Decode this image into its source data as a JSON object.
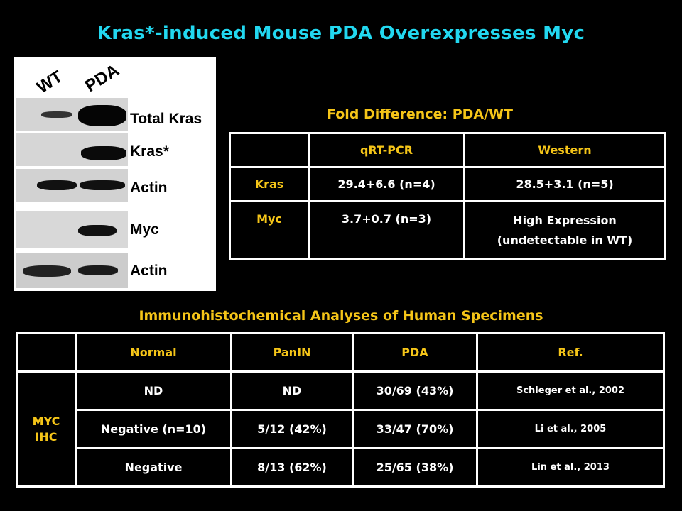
{
  "title": "Kras*-induced Mouse PDA Overexpresses Myc",
  "blot": {
    "lanes": [
      "WT",
      "PDA"
    ],
    "labels": [
      "Total Kras",
      "Kras*",
      "Actin",
      "Myc",
      "Actin"
    ]
  },
  "fold": {
    "subtitle": "Fold Difference: PDA/WT",
    "headers": [
      "",
      "qRT-PCR",
      "Western"
    ],
    "rows": [
      {
        "label": "Kras",
        "qrt": "29.4+6.6 (n=4)",
        "western": "28.5+3.1 (n=5)"
      },
      {
        "label": "Myc",
        "qrt": "3.7+0.7 (n=3)",
        "western_line1": "High Expression",
        "western_line2": "(undetectable in WT)"
      }
    ]
  },
  "ihc": {
    "subtitle": "Immunohistochemical Analyses of Human Specimens",
    "headers": [
      "",
      "Normal",
      "PanIN",
      "PDA",
      "Ref."
    ],
    "group_label_line1": "MYC",
    "group_label_line2": "IHC",
    "rows": [
      {
        "normal": "ND",
        "panin": "ND",
        "pda": "30/69 (43%)",
        "ref": "Schleger et al., 2002"
      },
      {
        "normal": "Negative (n=10)",
        "panin": "5/12 (42%)",
        "pda": "33/47 (70%)",
        "ref": "Li et al., 2005"
      },
      {
        "normal": "Negative",
        "panin": "8/13 (62%)",
        "pda": "25/65 (38%)",
        "ref": "Lin et al., 2013"
      }
    ]
  }
}
